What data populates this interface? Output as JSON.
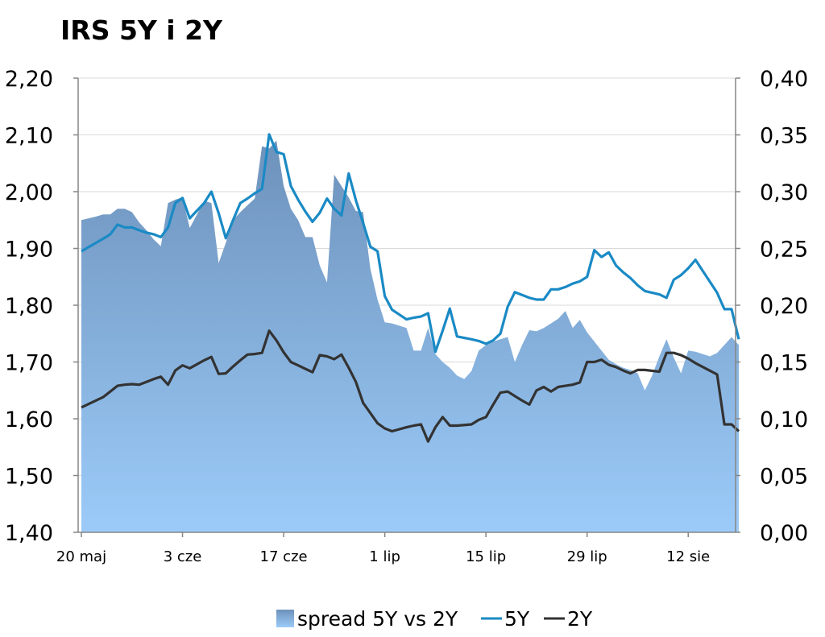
{
  "chart_data": {
    "type": "line",
    "title": "IRS 5Y i 2Y",
    "colors": {
      "spread_top": "#6d92bb",
      "spread_bottom": "#9ccbf9",
      "line_5y": "#1a8ac5",
      "line_2y": "#333333",
      "grid": "#d9d9d9",
      "axis": "#868686"
    },
    "left_axis": {
      "ylim": [
        1.4,
        2.2
      ],
      "ticks": [
        "1,40",
        "1,50",
        "1,60",
        "1,70",
        "1,80",
        "1,90",
        "2,00",
        "2,10",
        "2,20"
      ]
    },
    "right_axis": {
      "ylim": [
        0.0,
        0.4
      ],
      "ticks": [
        "0,00",
        "0,05",
        "0,10",
        "0,15",
        "0,20",
        "0,25",
        "0,30",
        "0,35",
        "0,40"
      ]
    },
    "x_ticks": [
      "20 maj",
      "3 cze",
      "17 cze",
      "1 lip",
      "15 lip",
      "29 lip",
      "12 sie"
    ],
    "x_range_days": [
      0,
      91
    ],
    "legend": [
      "spread 5Y vs 2Y",
      "5Y",
      "2Y"
    ],
    "series": [
      {
        "name": "spread 5Y vs 2Y",
        "axis": "right",
        "x": [
          0,
          2,
          3,
          4,
          5,
          6,
          7,
          8,
          9,
          10,
          11,
          12,
          13,
          14,
          15,
          16,
          17,
          18,
          19,
          20,
          21,
          22,
          23,
          24,
          25,
          26,
          27,
          28,
          29,
          30,
          31,
          32,
          33,
          34,
          35,
          36,
          37,
          38,
          39,
          40,
          41,
          42,
          43,
          44,
          45,
          46,
          47,
          48,
          49,
          50,
          51,
          52,
          53,
          54,
          55,
          56,
          57,
          58,
          59,
          60,
          61,
          62,
          63,
          64,
          65,
          66,
          67,
          68,
          69,
          70,
          71,
          72,
          73,
          74,
          75,
          76,
          77,
          78,
          79,
          80,
          81,
          82,
          83,
          84,
          85,
          86,
          87,
          88,
          89,
          90,
          91
        ],
        "values": [
          0.275,
          0.278,
          0.28,
          0.28,
          0.285,
          0.285,
          0.282,
          0.273,
          0.266,
          0.258,
          0.252,
          0.29,
          0.293,
          0.295,
          0.268,
          0.28,
          0.292,
          0.29,
          0.237,
          0.255,
          0.275,
          0.282,
          0.288,
          0.294,
          0.34,
          0.338,
          0.345,
          0.305,
          0.285,
          0.275,
          0.26,
          0.26,
          0.235,
          0.22,
          0.315,
          0.305,
          0.295,
          0.283,
          0.282,
          0.232,
          0.205,
          0.185,
          0.184,
          0.182,
          0.18,
          0.16,
          0.16,
          0.18,
          0.157,
          0.15,
          0.145,
          0.138,
          0.135,
          0.142,
          0.16,
          0.165,
          0.168,
          0.17,
          0.172,
          0.15,
          0.165,
          0.178,
          0.177,
          0.18,
          0.184,
          0.188,
          0.195,
          0.18,
          0.187,
          0.176,
          0.168,
          0.16,
          0.152,
          0.148,
          0.145,
          0.143,
          0.14,
          0.125,
          0.138,
          0.155,
          0.17,
          0.154,
          0.14,
          0.16,
          0.159,
          0.157,
          0.155,
          0.158,
          0.165,
          0.172,
          0.165
        ]
      },
      {
        "name": "5Y",
        "axis": "left",
        "x": [
          0,
          3,
          4,
          5,
          6,
          7,
          8,
          9,
          10,
          11,
          12,
          13,
          14,
          15,
          17,
          18,
          19,
          20,
          21,
          22,
          23,
          24,
          25,
          26,
          27,
          28,
          29,
          30,
          31,
          32,
          33,
          34,
          35,
          36,
          37,
          38,
          39,
          40,
          41,
          42,
          43,
          45,
          46,
          47,
          48,
          49,
          50,
          51,
          52,
          54,
          55,
          56,
          57,
          58,
          59,
          60,
          61,
          62,
          63,
          64,
          65,
          66,
          67,
          68,
          69,
          70,
          71,
          72,
          73,
          74,
          75,
          76,
          77,
          78,
          80,
          81,
          82,
          83,
          84,
          85,
          88,
          89,
          90,
          91
        ],
        "values": [
          1.895,
          1.917,
          1.925,
          1.942,
          1.937,
          1.937,
          1.932,
          1.928,
          1.925,
          1.92,
          1.937,
          1.98,
          1.989,
          1.953,
          1.98,
          2.0,
          1.962,
          1.918,
          1.95,
          1.98,
          1.988,
          1.997,
          2.005,
          2.101,
          2.07,
          2.066,
          2.01,
          1.986,
          1.965,
          1.947,
          1.963,
          1.988,
          1.97,
          1.958,
          2.032,
          1.985,
          1.945,
          1.903,
          1.895,
          1.816,
          1.792,
          1.775,
          1.778,
          1.78,
          1.786,
          1.718,
          1.755,
          1.794,
          1.745,
          1.74,
          1.737,
          1.732,
          1.738,
          1.75,
          1.797,
          1.823,
          1.818,
          1.813,
          1.81,
          1.81,
          1.828,
          1.828,
          1.832,
          1.838,
          1.842,
          1.85,
          1.897,
          1.885,
          1.893,
          1.87,
          1.858,
          1.848,
          1.835,
          1.825,
          1.819,
          1.813,
          1.845,
          1.853,
          1.865,
          1.88,
          1.822,
          1.793,
          1.793,
          1.74
        ]
      },
      {
        "name": "2Y",
        "axis": "left",
        "x": [
          0,
          3,
          4,
          5,
          6,
          7,
          8,
          9,
          10,
          11,
          12,
          13,
          14,
          15,
          17,
          18,
          19,
          20,
          21,
          22,
          23,
          24,
          25,
          26,
          27,
          28,
          29,
          30,
          31,
          32,
          33,
          34,
          35,
          36,
          37,
          38,
          39,
          40,
          41,
          42,
          43,
          45,
          46,
          47,
          48,
          49,
          50,
          51,
          52,
          54,
          55,
          56,
          57,
          58,
          59,
          60,
          61,
          62,
          63,
          64,
          65,
          66,
          67,
          68,
          69,
          70,
          71,
          72,
          73,
          74,
          75,
          76,
          77,
          78,
          80,
          81,
          82,
          83,
          84,
          85,
          88,
          89,
          90,
          91
        ],
        "values": [
          1.62,
          1.638,
          1.648,
          1.658,
          1.66,
          1.661,
          1.66,
          1.665,
          1.67,
          1.674,
          1.66,
          1.685,
          1.694,
          1.689,
          1.703,
          1.709,
          1.679,
          1.68,
          1.692,
          1.703,
          1.713,
          1.714,
          1.716,
          1.755,
          1.738,
          1.717,
          1.7,
          1.694,
          1.688,
          1.682,
          1.712,
          1.71,
          1.705,
          1.713,
          1.69,
          1.665,
          1.628,
          1.61,
          1.592,
          1.583,
          1.578,
          1.585,
          1.588,
          1.59,
          1.56,
          1.585,
          1.603,
          1.588,
          1.588,
          1.59,
          1.598,
          1.603,
          1.625,
          1.646,
          1.648,
          1.64,
          1.632,
          1.625,
          1.65,
          1.656,
          1.648,
          1.656,
          1.658,
          1.66,
          1.664,
          1.7,
          1.7,
          1.704,
          1.695,
          1.691,
          1.685,
          1.68,
          1.686,
          1.686,
          1.683,
          1.716,
          1.716,
          1.712,
          1.706,
          1.698,
          1.678,
          1.59,
          1.59,
          1.578
        ]
      }
    ]
  }
}
